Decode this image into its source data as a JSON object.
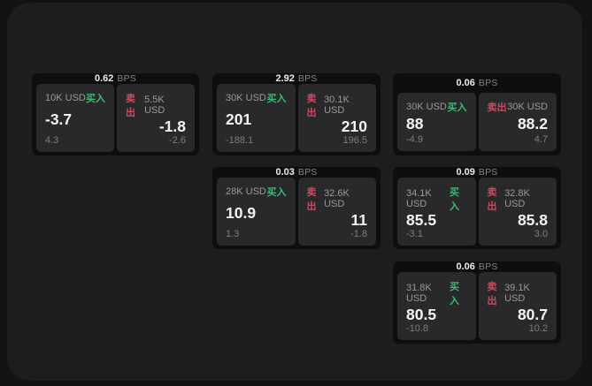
{
  "labels": {
    "bps_unit": "BPS",
    "buy": "买入",
    "sell": "卖出"
  },
  "colors": {
    "outer_background": "#131313",
    "panel_background": "#1d1d1f",
    "card_background": "#0e0e0f",
    "subpanel_background": "#29292b",
    "buy_green": "#3dba72",
    "sell_red": "#cd4a5e",
    "primary_text": "#f4f4f5",
    "secondary_text": "#9a9a9e"
  },
  "cards": [
    {
      "bps": "0.62",
      "buy": {
        "size": "10K USD",
        "price": "-3.7",
        "delta": "4.3"
      },
      "sell": {
        "size": "5.5K USD",
        "price": "-1.8",
        "delta": "-2.6"
      }
    },
    {
      "bps": "2.92",
      "buy": {
        "size": "30K USD",
        "price": "201",
        "delta": "-188.1"
      },
      "sell": {
        "size": "30.1K USD",
        "price": "210",
        "delta": "196.5"
      }
    },
    {
      "bps": "0.06",
      "buy": {
        "size": "30K USD",
        "price": "88",
        "delta": "-4.9"
      },
      "sell": {
        "size": "30K USD",
        "price": "88.2",
        "delta": "4.7"
      }
    },
    {
      "bps": "0.03",
      "buy": {
        "size": "28K USD",
        "price": "10.9",
        "delta": "1.3"
      },
      "sell": {
        "size": "32.6K USD",
        "price": "11",
        "delta": "-1.8"
      }
    },
    {
      "bps": "0.09",
      "buy": {
        "size": "34.1K USD",
        "price": "85.5",
        "delta": "-3.1"
      },
      "sell": {
        "size": "32.8K USD",
        "price": "85.8",
        "delta": "3.0"
      }
    },
    {
      "bps": "0.06",
      "buy": {
        "size": "31.8K USD",
        "price": "80.5",
        "delta": "-10.8"
      },
      "sell": {
        "size": "39.1K USD",
        "price": "80.7",
        "delta": "10.2"
      }
    }
  ]
}
